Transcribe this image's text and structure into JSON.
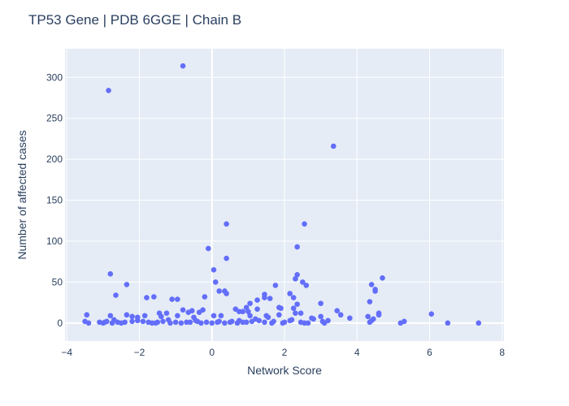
{
  "chart_data": {
    "type": "scatter",
    "title": "TP53 Gene | PDB 6GGE | Chain B",
    "xlabel": "Network Score",
    "ylabel": "Number of affected cases",
    "xlim": [
      -4.05,
      8.05
    ],
    "ylim": [
      -22,
      335
    ],
    "xticks": [
      -4,
      -2,
      0,
      2,
      4,
      6,
      8
    ],
    "yticks": [
      0,
      50,
      100,
      150,
      200,
      250,
      300
    ],
    "xtick_labels": [
      "−4",
      "−2",
      "0",
      "2",
      "4",
      "6",
      "8"
    ],
    "ytick_labels": [
      "0",
      "50",
      "100",
      "150",
      "200",
      "250",
      "300"
    ],
    "grid": true,
    "marker_color": "#636efa",
    "plot_bg": "#e5ecf6",
    "grid_color": "#ffffff",
    "points": [
      [
        -2.85,
        284
      ],
      [
        -0.8,
        314
      ],
      [
        3.35,
        216
      ],
      [
        0.4,
        121
      ],
      [
        2.55,
        121
      ],
      [
        2.35,
        93
      ],
      [
        -0.1,
        91
      ],
      [
        0.4,
        79
      ],
      [
        0.05,
        65
      ],
      [
        -2.8,
        60
      ],
      [
        4.7,
        55
      ],
      [
        2.3,
        54
      ],
      [
        2.35,
        59
      ],
      [
        0.1,
        50
      ],
      [
        2.5,
        50
      ],
      [
        -2.35,
        47
      ],
      [
        2.6,
        46
      ],
      [
        1.75,
        46
      ],
      [
        4.4,
        47
      ],
      [
        4.5,
        41
      ],
      [
        4.5,
        39
      ],
      [
        0.2,
        39
      ],
      [
        0.35,
        39
      ],
      [
        0.4,
        36
      ],
      [
        2.15,
        36
      ],
      [
        -2.65,
        34
      ],
      [
        1.45,
        35
      ],
      [
        1.45,
        31
      ],
      [
        1.6,
        30
      ],
      [
        1.25,
        28
      ],
      [
        2.25,
        31
      ],
      [
        -1.8,
        31
      ],
      [
        -1.6,
        32
      ],
      [
        -1.1,
        29
      ],
      [
        -0.95,
        29
      ],
      [
        -0.2,
        32
      ],
      [
        3.0,
        24
      ],
      [
        1.05,
        24
      ],
      [
        2.35,
        23
      ],
      [
        4.35,
        26
      ],
      [
        0.95,
        19
      ],
      [
        1.85,
        19
      ],
      [
        2.25,
        18
      ],
      [
        1.9,
        18
      ],
      [
        1.25,
        17
      ],
      [
        0.65,
        17
      ],
      [
        -0.8,
        16
      ],
      [
        -0.55,
        15
      ],
      [
        -0.25,
        16
      ],
      [
        0.75,
        14
      ],
      [
        0.85,
        14
      ],
      [
        1.0,
        14
      ],
      [
        -1.45,
        12
      ],
      [
        -1.25,
        12
      ],
      [
        -0.65,
        13
      ],
      [
        -0.35,
        13
      ],
      [
        3.45,
        15
      ],
      [
        2.3,
        12
      ],
      [
        2.45,
        12
      ],
      [
        6.05,
        11
      ],
      [
        4.6,
        12
      ],
      [
        4.6,
        10
      ],
      [
        3.55,
        10
      ],
      [
        1.85,
        10
      ],
      [
        0.05,
        9
      ],
      [
        0.25,
        9
      ],
      [
        1.05,
        9
      ],
      [
        -0.95,
        9
      ],
      [
        -1.4,
        8
      ],
      [
        -1.85,
        9
      ],
      [
        -2.2,
        8
      ],
      [
        -2.35,
        10
      ],
      [
        -2.8,
        9
      ],
      [
        -3.45,
        10
      ],
      [
        -2.05,
        7
      ],
      [
        -0.5,
        7
      ],
      [
        1.5,
        9
      ],
      [
        1.55,
        7
      ],
      [
        3.0,
        8
      ],
      [
        4.3,
        8
      ],
      [
        3.8,
        6
      ],
      [
        -2.7,
        4
      ],
      [
        -2.6,
        1
      ],
      [
        -2.4,
        1
      ],
      [
        -2.2,
        2
      ],
      [
        -2.05,
        3
      ],
      [
        -1.9,
        2
      ],
      [
        -1.75,
        1
      ],
      [
        -1.55,
        0
      ],
      [
        -1.35,
        2
      ],
      [
        -1.2,
        4
      ],
      [
        -1.0,
        1
      ],
      [
        -0.7,
        1
      ],
      [
        -0.4,
        2
      ],
      [
        -0.15,
        1
      ],
      [
        0.15,
        1
      ],
      [
        0.35,
        0
      ],
      [
        0.55,
        2
      ],
      [
        0.75,
        3
      ],
      [
        0.95,
        1
      ],
      [
        1.1,
        2
      ],
      [
        1.3,
        3
      ],
      [
        1.45,
        1
      ],
      [
        1.7,
        2
      ],
      [
        1.95,
        0
      ],
      [
        2.15,
        3
      ],
      [
        2.45,
        1
      ],
      [
        2.65,
        0
      ],
      [
        2.8,
        5
      ],
      [
        3.05,
        2
      ],
      [
        3.2,
        3
      ],
      [
        4.4,
        3
      ],
      [
        4.35,
        1
      ],
      [
        5.2,
        0
      ],
      [
        5.3,
        2
      ],
      [
        6.5,
        0
      ],
      [
        7.35,
        0
      ],
      [
        -3.5,
        2
      ],
      [
        -3.4,
        0
      ],
      [
        -3.1,
        1
      ],
      [
        -3.0,
        0
      ],
      [
        -2.95,
        1
      ],
      [
        -2.9,
        2
      ],
      [
        -2.75,
        0
      ],
      [
        -2.5,
        0
      ],
      [
        -1.5,
        1
      ],
      [
        -1.15,
        0
      ],
      [
        -0.85,
        0
      ],
      [
        -0.6,
        1
      ],
      [
        -0.3,
        0
      ],
      [
        0.0,
        0
      ],
      [
        0.2,
        2
      ],
      [
        0.5,
        1
      ],
      [
        0.7,
        0
      ],
      [
        0.85,
        1
      ],
      [
        1.2,
        5
      ],
      [
        1.65,
        0
      ],
      [
        2.0,
        1
      ],
      [
        2.2,
        4
      ],
      [
        2.55,
        0
      ],
      [
        2.75,
        6
      ],
      [
        3.1,
        0
      ],
      [
        4.45,
        5
      ],
      [
        -1.65,
        0
      ],
      [
        -0.45,
        3
      ]
    ]
  }
}
